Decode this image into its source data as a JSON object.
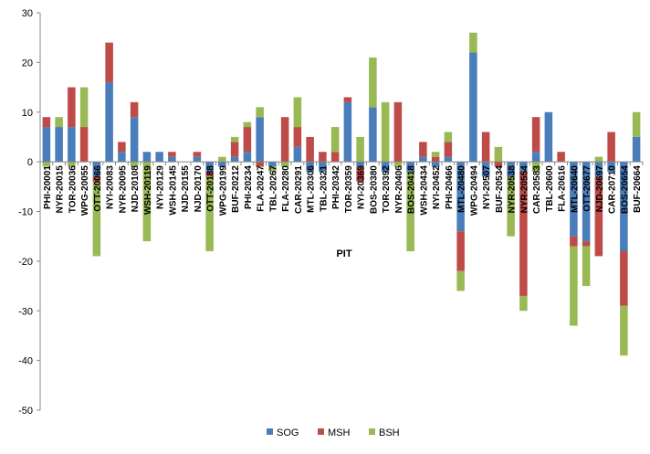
{
  "chart_data": {
    "type": "bar",
    "stacked": true,
    "title": "",
    "xlabel": "PIT",
    "ylabel": "",
    "ylim": [
      -50,
      30
    ],
    "yticks": [
      -50,
      -40,
      -30,
      -20,
      -10,
      0,
      10,
      20,
      30
    ],
    "grid": false,
    "legend_position": "bottom",
    "categories": [
      "PHI-20001",
      "NYR-20015",
      "TOR-20036",
      "WPG-20055",
      "OTT-20066",
      "NYI-20083",
      "NYR-20095",
      "NJD-20108",
      "WSH-20119",
      "NYI-20129",
      "WSH-20145",
      "NJD-20155",
      "NJD-20170",
      "OTT-20188",
      "WPG-20199",
      "BUF-20212",
      "PHI-20234",
      "FLA-20247",
      "TBL-20267",
      "FLA-20280",
      "CAR-20291",
      "MTL-20306",
      "TBL-20321",
      "PHI-20342",
      "TOR-20359",
      "NYI-20369",
      "BOS-20380",
      "TOR-20392",
      "NYR-20406",
      "BOS-20418",
      "WSH-20434",
      "NYI-20452",
      "PHI-20466",
      "MTL-20480",
      "WPG-20494",
      "NYI-20507",
      "BUF-20534",
      "NYR-20538",
      "NYR-20554",
      "CAR-20583",
      "TBL-20600",
      "FLA-20616",
      "MTL-20640",
      "OTT-20677",
      "NJD-20697",
      "CAR-20710",
      "BOS-20654",
      "BUF-20664"
    ],
    "series": [
      {
        "name": "SOG",
        "color": "#4a7ebb",
        "values": [
          7,
          7,
          7,
          0,
          -3,
          16,
          2,
          9,
          2,
          2,
          1,
          0,
          1,
          -2,
          -1,
          1,
          2,
          9,
          -1,
          0,
          3,
          -2,
          -2,
          0,
          12,
          -1,
          11,
          -2,
          0,
          -2,
          1,
          -1,
          1,
          -14,
          22,
          -3,
          0,
          -3,
          -2,
          2,
          10,
          0,
          -15,
          -16,
          -3,
          -2,
          -18,
          5
        ]
      },
      {
        "name": "MSH",
        "color": "#be4b48",
        "values": [
          2,
          0,
          8,
          7,
          -1,
          8,
          2,
          3,
          0,
          0,
          1,
          0,
          1,
          -1,
          0,
          3,
          5,
          -1,
          0,
          9,
          4,
          5,
          2,
          2,
          1,
          -3,
          0,
          0,
          12,
          0,
          3,
          1,
          3,
          -8,
          0,
          6,
          -1,
          0,
          -25,
          7,
          0,
          2,
          -2,
          -1,
          -16,
          6,
          -11,
          0
        ]
      },
      {
        "name": "BSH",
        "color": "#98b954",
        "values": [
          -1,
          2,
          -1,
          8,
          -15,
          0,
          0,
          -1,
          -16,
          0,
          0,
          0,
          0,
          -15,
          1,
          1,
          1,
          2,
          -1,
          -1,
          6,
          0,
          0,
          5,
          0,
          5,
          10,
          12,
          -1,
          -16,
          0,
          1,
          2,
          -4,
          4,
          0,
          3,
          -12,
          -3,
          -2,
          0,
          0,
          -16,
          -8,
          1,
          0,
          -10,
          5
        ]
      }
    ]
  }
}
